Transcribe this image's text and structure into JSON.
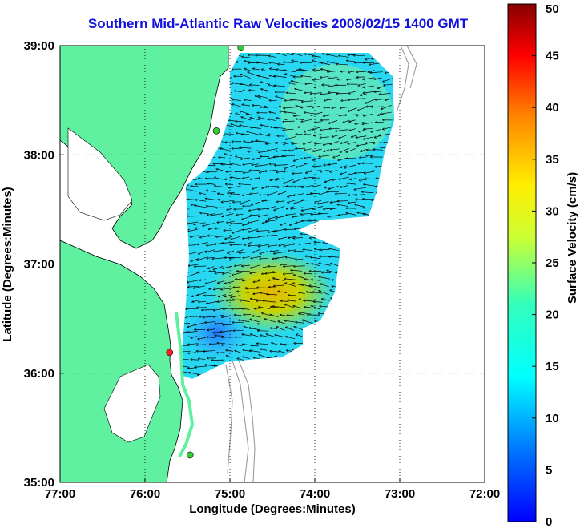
{
  "chart_data": {
    "type": "heatmap",
    "title": "Southern Mid-Atlantic Raw Velocities 2008/02/15 1400 GMT",
    "xlabel": "Longitude (Degrees:Minutes)",
    "ylabel": "Latitude (Degrees:Minutes)",
    "colorbar_label": "Surface Velocity (cm/s)",
    "x_ticks": [
      {
        "value": -77,
        "label": "77:00"
      },
      {
        "value": -76,
        "label": "76:00"
      },
      {
        "value": -75,
        "label": "75:00"
      },
      {
        "value": -74,
        "label": "74:00"
      },
      {
        "value": -73,
        "label": "73:00"
      },
      {
        "value": -72,
        "label": "72:00"
      }
    ],
    "y_ticks": [
      {
        "value": 35,
        "label": "35:00"
      },
      {
        "value": 36,
        "label": "36:00"
      },
      {
        "value": 37,
        "label": "37:00"
      },
      {
        "value": 38,
        "label": "38:00"
      },
      {
        "value": 39,
        "label": "39:00"
      }
    ],
    "xlim": [
      -77,
      -72
    ],
    "ylim": [
      35,
      39
    ],
    "colorbar_ticks": [
      0,
      5,
      10,
      15,
      20,
      25,
      30,
      35,
      40,
      45,
      50
    ],
    "colorbar_range": [
      0,
      50
    ],
    "grid": true,
    "colormap": "jet",
    "land_color": "#5ff0a0",
    "stations": [
      {
        "lon": -74.87,
        "lat": 38.98,
        "color": "#33cc33"
      },
      {
        "lon": -75.16,
        "lat": 38.22,
        "color": "#33cc33"
      },
      {
        "lon": -75.71,
        "lat": 36.19,
        "color": "#ff2020"
      },
      {
        "lon": -75.47,
        "lat": 35.25,
        "color": "#33cc33"
      }
    ]
  }
}
